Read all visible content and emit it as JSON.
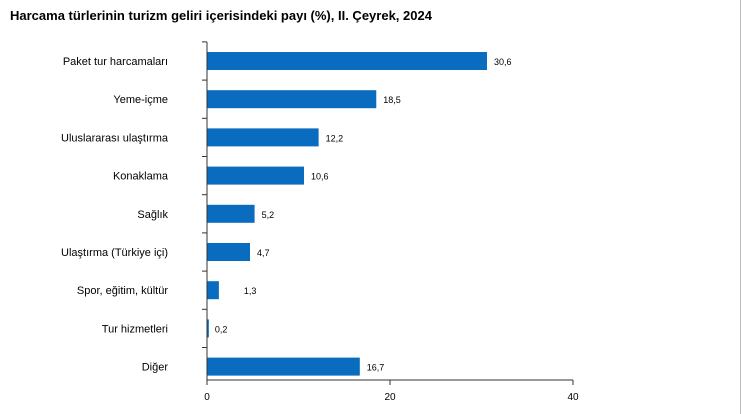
{
  "chart_data": {
    "type": "bar",
    "orientation": "horizontal",
    "title": "Harcama türlerinin turizm geliri içerisindeki payı (%), II. Çeyrek, 2024",
    "categories": [
      "Paket tur harcamaları",
      "Yeme-içme",
      "Uluslararası ulaştırma",
      "Konaklama",
      "Sağlık",
      "Ulaştırma (Türkiye içi)",
      "Spor, eğitim, kültür",
      "Tur hizmetleri",
      "Diğer"
    ],
    "values": [
      30.6,
      18.5,
      12.2,
      10.6,
      5.2,
      4.7,
      1.3,
      0.2,
      16.7
    ],
    "value_labels": [
      "30,6",
      "18,5",
      "12,2",
      "10,6",
      "5,2",
      "4,7",
      "1,3",
      "0,2",
      "16,7"
    ],
    "xlim": [
      0,
      40
    ],
    "x_ticks": [
      0,
      20,
      40
    ],
    "x_tick_labels": [
      "0",
      "20",
      "40"
    ],
    "xlabel": "",
    "ylabel": "",
    "grid": false,
    "bar_color": "#0a6cbe"
  }
}
